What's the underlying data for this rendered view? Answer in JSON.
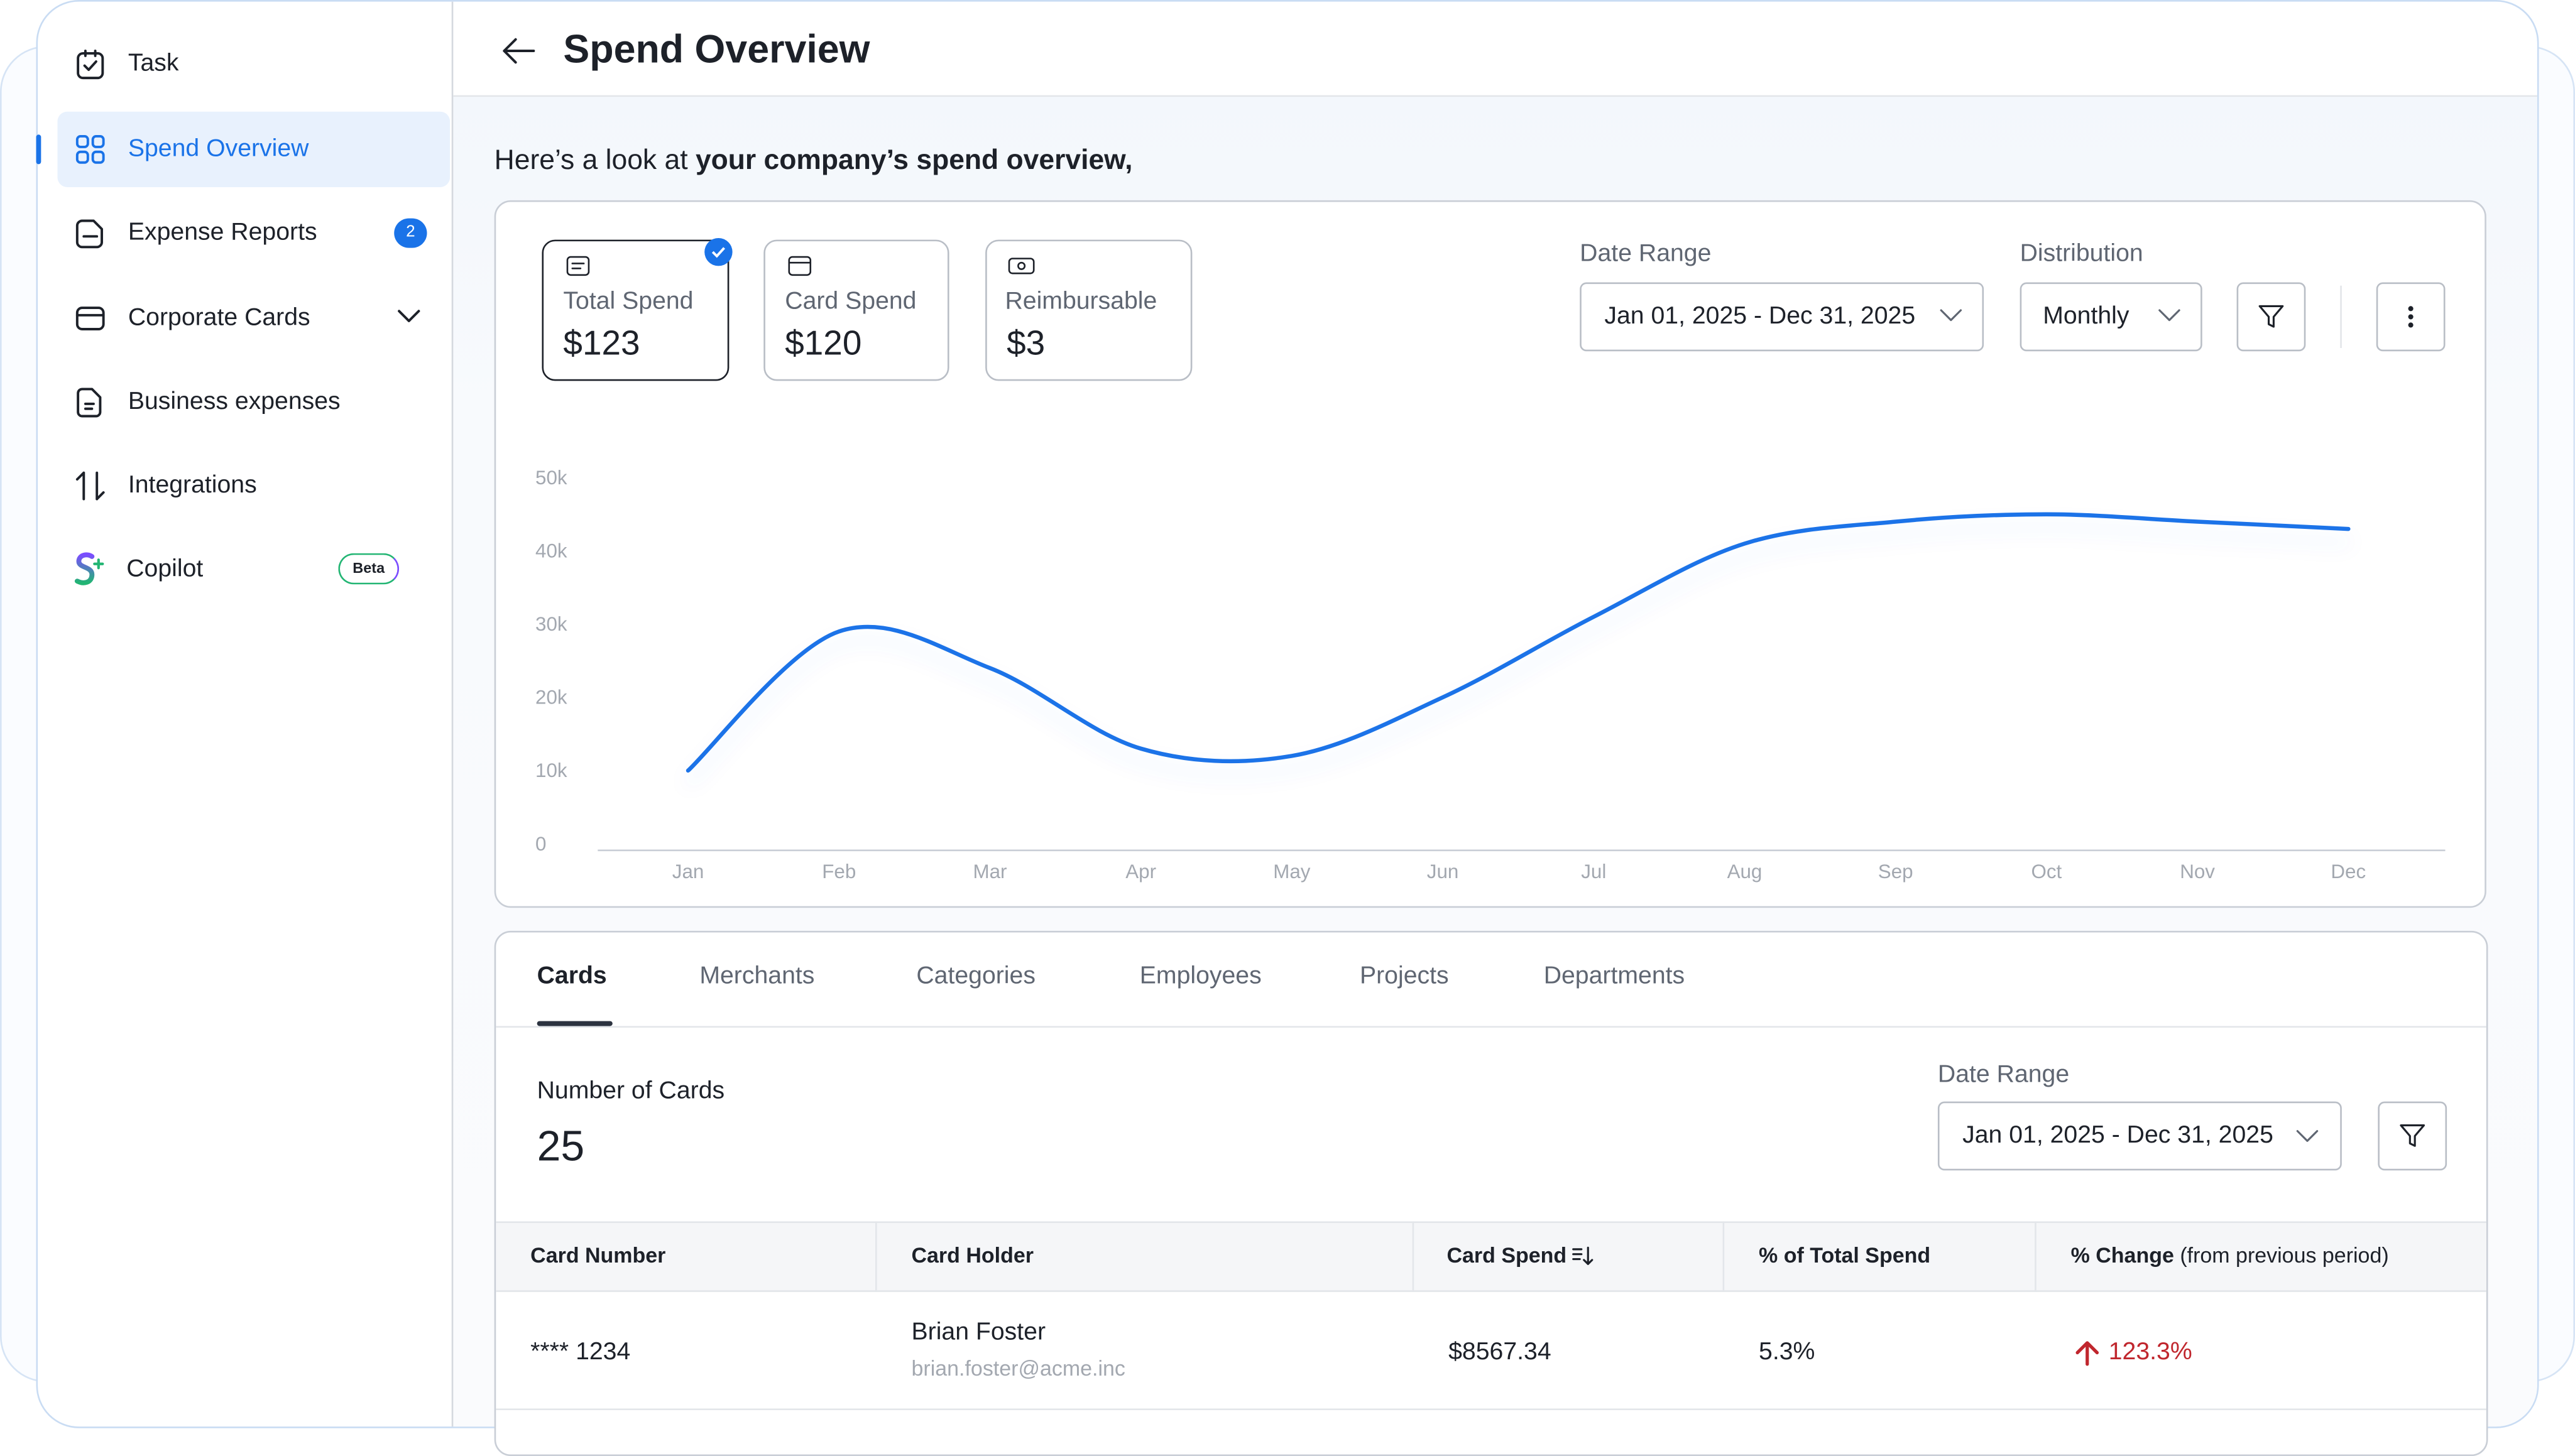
{
  "sidebar": {
    "items": [
      {
        "label": "Task"
      },
      {
        "label": "Spend Overview"
      },
      {
        "label": "Expense Reports",
        "badge": "2"
      },
      {
        "label": "Corporate Cards"
      },
      {
        "label": "Business expenses"
      },
      {
        "label": "Integrations"
      },
      {
        "label": "Copilot",
        "badge": "Beta"
      }
    ]
  },
  "header": {
    "title": "Spend Overview"
  },
  "intro": {
    "prefix": "Here’s a look at",
    "emphasis": "your company’s spend overview,"
  },
  "summary_cards": [
    {
      "label": "Total Spend",
      "value": "$123"
    },
    {
      "label": "Card Spend",
      "value": "$120"
    },
    {
      "label": "Reimbursable",
      "value": "$3"
    }
  ],
  "filters": {
    "date_range_label": "Date Range",
    "date_range": "Jan 01, 2025 - Dec 31, 2025",
    "distribution_label": "Distribution",
    "distribution": "Monthly"
  },
  "chart_data": {
    "type": "line",
    "categories": [
      "Jan",
      "Feb",
      "Mar",
      "Apr",
      "May",
      "Jun",
      "Jul",
      "Aug",
      "Sep",
      "Oct",
      "Nov",
      "Dec"
    ],
    "values": [
      10000,
      29000,
      24000,
      13000,
      12000,
      20000,
      31000,
      41000,
      44000,
      45000,
      44000,
      43000
    ],
    "color": "#1a73e8",
    "ylim": [
      0,
      50000
    ],
    "yticks": [
      0,
      {
        "value": 10000,
        "label": "10k"
      },
      {
        "value": 20000,
        "label": "20k"
      },
      {
        "value": 30000,
        "label": "30k"
      },
      {
        "value": 40000,
        "label": "40k"
      },
      {
        "value": 50000,
        "label": "50k"
      }
    ],
    "grid": false
  },
  "tabs": [
    "Cards",
    "Merchants",
    "Categories",
    "Employees",
    "Projects",
    "Departments"
  ],
  "cards_panel": {
    "count_label": "Number of Cards",
    "count": "25",
    "date_range_label": "Date Range",
    "date_range": "Jan 01, 2025 - Dec 31, 2025"
  },
  "table": {
    "columns": [
      "Card Number",
      "Card Holder",
      "Card Spend",
      "% of Total Spend",
      "% Change"
    ],
    "change_note": "(from previous period)",
    "rows": [
      {
        "card_number": "**** 1234",
        "holder_name": "Brian Foster",
        "holder_email": "brian.foster@acme.inc",
        "card_spend": "$8567.34",
        "share": "5.3%",
        "change": "123.3%"
      }
    ]
  }
}
